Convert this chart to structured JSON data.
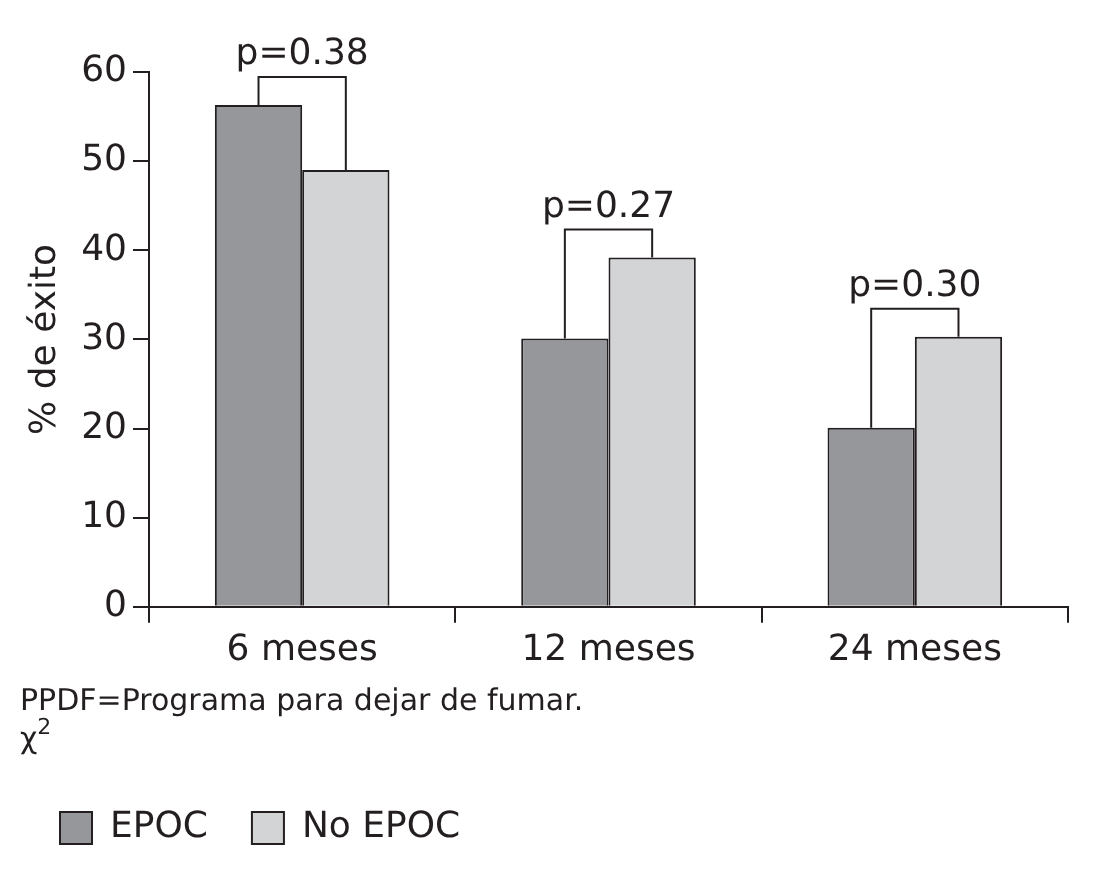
{
  "chart_data": {
    "type": "bar",
    "ylabel": "% de éxito",
    "categories": [
      "6 meses",
      "12 meses",
      "24 meses"
    ],
    "series": [
      {
        "name": "EPOC",
        "color": "#96979b",
        "values": [
          56.3,
          30.1,
          20.1
        ]
      },
      {
        "name": "No EPOC",
        "color": "#d3d4d6",
        "values": [
          49.0,
          39.2,
          30.3
        ]
      }
    ],
    "ylim": [
      0,
      60
    ],
    "yticks": [
      0,
      10,
      20,
      30,
      40,
      50,
      60
    ],
    "grid": false,
    "legend": "bottom",
    "annotations": [
      {
        "text": "p=0.38",
        "x": "6 meses",
        "y": 56.3
      },
      {
        "text": "p=0.27",
        "x": "12 meses",
        "y": 39.2
      },
      {
        "text": "p=0.30",
        "x": "24 meses",
        "y": 30.3
      },
      "PPDF=Programa para dejar de fumar.",
      "χ$^{2}$"
    ]
  }
}
